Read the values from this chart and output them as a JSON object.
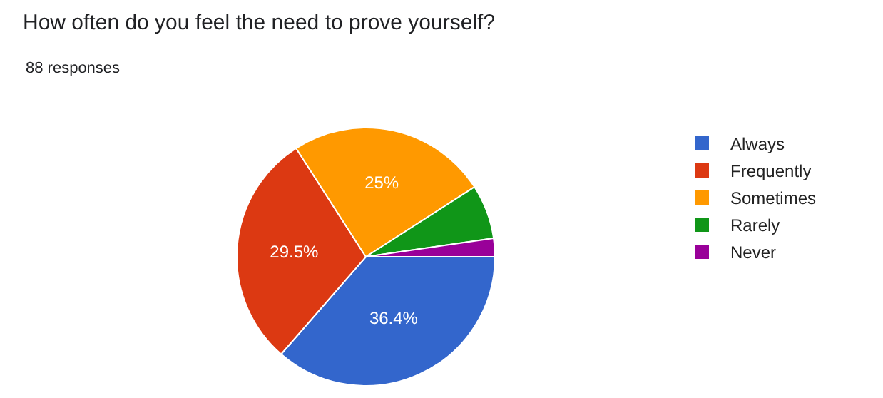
{
  "chart_data": {
    "type": "pie",
    "title": "How often do you feel the need to prove yourself?",
    "annotations": [
      "88 responses"
    ],
    "categories": [
      "Always",
      "Frequently",
      "Sometimes",
      "Rarely",
      "Never"
    ],
    "values": [
      36.4,
      29.5,
      25,
      6.8,
      2.3
    ],
    "colors": [
      "#3366cc",
      "#dc3912",
      "#ff9900",
      "#109618",
      "#990099"
    ],
    "value_labels": [
      "36.4%",
      "29.5%",
      "25%",
      null,
      null
    ],
    "legend": "right"
  }
}
